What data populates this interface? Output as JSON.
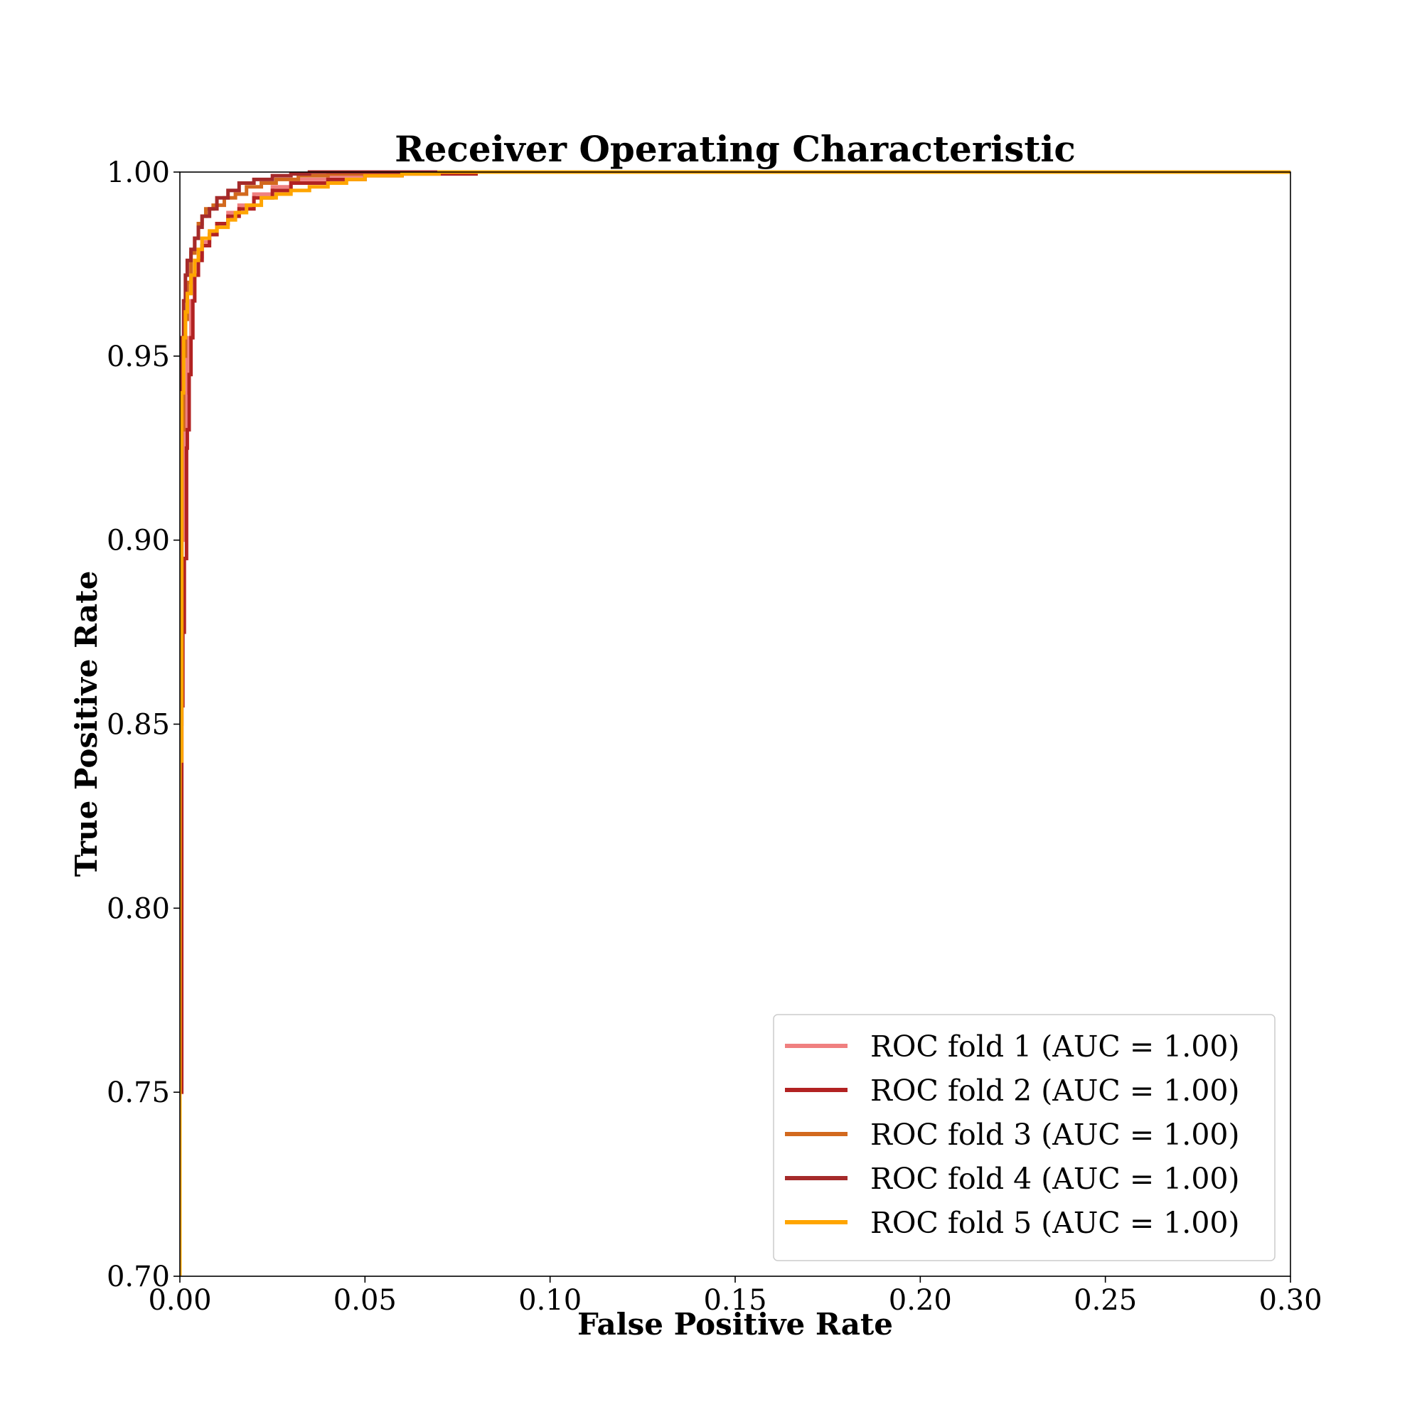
{
  "chart_data": {
    "type": "line",
    "title": "Receiver Operating Characteristic",
    "xlabel": "False Positive Rate",
    "ylabel": "True Positive Rate",
    "xlim": [
      0.0,
      0.3
    ],
    "ylim": [
      0.7,
      1.0
    ],
    "x_ticks": [
      "0.00",
      "0.05",
      "0.10",
      "0.15",
      "0.20",
      "0.25",
      "0.30"
    ],
    "y_ticks": [
      "0.70",
      "0.75",
      "0.80",
      "0.85",
      "0.90",
      "0.95",
      "1.00"
    ],
    "grid": false,
    "legend_position": "bottom-right",
    "series": [
      {
        "name": "ROC fold 1 (AUC = 1.00)",
        "color": "#f08080",
        "points": [
          [
            0,
            0.7
          ],
          [
            0.0005,
            0.8
          ],
          [
            0.001,
            0.9
          ],
          [
            0.0015,
            0.93
          ],
          [
            0.002,
            0.94
          ],
          [
            0.003,
            0.955
          ],
          [
            0.004,
            0.965
          ],
          [
            0.005,
            0.972
          ],
          [
            0.006,
            0.977
          ],
          [
            0.008,
            0.981
          ],
          [
            0.01,
            0.983
          ],
          [
            0.013,
            0.986
          ],
          [
            0.016,
            0.989
          ],
          [
            0.02,
            0.991
          ],
          [
            0.025,
            0.994
          ],
          [
            0.03,
            0.996
          ],
          [
            0.04,
            0.998
          ],
          [
            0.05,
            0.999
          ],
          [
            0.06,
            0.9995
          ],
          [
            0.08,
            1.0
          ],
          [
            0.3,
            1.0
          ]
        ]
      },
      {
        "name": "ROC fold 2 (AUC = 1.00)",
        "color": "#b22222",
        "points": [
          [
            0,
            0.7
          ],
          [
            0.0005,
            0.75
          ],
          [
            0.0008,
            0.855
          ],
          [
            0.0012,
            0.875
          ],
          [
            0.0018,
            0.895
          ],
          [
            0.002,
            0.925
          ],
          [
            0.0025,
            0.93
          ],
          [
            0.003,
            0.945
          ],
          [
            0.0035,
            0.955
          ],
          [
            0.004,
            0.965
          ],
          [
            0.005,
            0.972
          ],
          [
            0.006,
            0.976
          ],
          [
            0.008,
            0.98
          ],
          [
            0.01,
            0.983
          ],
          [
            0.013,
            0.986
          ],
          [
            0.016,
            0.988
          ],
          [
            0.02,
            0.99
          ],
          [
            0.025,
            0.993
          ],
          [
            0.03,
            0.995
          ],
          [
            0.04,
            0.997
          ],
          [
            0.05,
            0.998
          ],
          [
            0.06,
            0.999
          ],
          [
            0.08,
            0.9995
          ],
          [
            0.1,
            1.0
          ],
          [
            0.3,
            1.0
          ]
        ]
      },
      {
        "name": "ROC fold 3 (AUC = 1.00)",
        "color": "#d2691e",
        "points": [
          [
            0,
            0.75
          ],
          [
            0.0005,
            0.85
          ],
          [
            0.001,
            0.93
          ],
          [
            0.0015,
            0.95
          ],
          [
            0.002,
            0.96
          ],
          [
            0.003,
            0.97
          ],
          [
            0.004,
            0.978
          ],
          [
            0.005,
            0.982
          ],
          [
            0.006,
            0.986
          ],
          [
            0.007,
            0.988
          ],
          [
            0.009,
            0.99
          ],
          [
            0.012,
            0.991
          ],
          [
            0.015,
            0.993
          ],
          [
            0.018,
            0.994
          ],
          [
            0.022,
            0.996
          ],
          [
            0.026,
            0.997
          ],
          [
            0.032,
            0.998
          ],
          [
            0.04,
            0.999
          ],
          [
            0.05,
            0.9995
          ],
          [
            0.07,
            1.0
          ],
          [
            0.3,
            1.0
          ]
        ]
      },
      {
        "name": "ROC fold 4 (AUC = 1.00)",
        "color": "#a52a2a",
        "points": [
          [
            0,
            0.7
          ],
          [
            0.0005,
            0.88
          ],
          [
            0.001,
            0.955
          ],
          [
            0.0015,
            0.965
          ],
          [
            0.002,
            0.972
          ],
          [
            0.003,
            0.976
          ],
          [
            0.004,
            0.979
          ],
          [
            0.005,
            0.982
          ],
          [
            0.006,
            0.985
          ],
          [
            0.008,
            0.988
          ],
          [
            0.01,
            0.99
          ],
          [
            0.013,
            0.993
          ],
          [
            0.016,
            0.995
          ],
          [
            0.02,
            0.997
          ],
          [
            0.025,
            0.998
          ],
          [
            0.03,
            0.999
          ],
          [
            0.035,
            0.9995
          ],
          [
            0.045,
            1.0
          ],
          [
            0.3,
            1.0
          ]
        ]
      },
      {
        "name": "ROC fold 5 (AUC = 1.00)",
        "color": "#ffa500",
        "points": [
          [
            0,
            0.7
          ],
          [
            0.0005,
            0.84
          ],
          [
            0.001,
            0.94
          ],
          [
            0.0015,
            0.955
          ],
          [
            0.002,
            0.962
          ],
          [
            0.003,
            0.967
          ],
          [
            0.004,
            0.972
          ],
          [
            0.005,
            0.976
          ],
          [
            0.006,
            0.979
          ],
          [
            0.008,
            0.982
          ],
          [
            0.01,
            0.984
          ],
          [
            0.013,
            0.985
          ],
          [
            0.015,
            0.987
          ],
          [
            0.018,
            0.989
          ],
          [
            0.022,
            0.991
          ],
          [
            0.026,
            0.993
          ],
          [
            0.03,
            0.994
          ],
          [
            0.035,
            0.995
          ],
          [
            0.04,
            0.996
          ],
          [
            0.045,
            0.997
          ],
          [
            0.05,
            0.998
          ],
          [
            0.06,
            0.999
          ],
          [
            0.07,
            0.9995
          ],
          [
            0.09,
            1.0
          ],
          [
            0.3,
            1.0
          ]
        ]
      }
    ]
  }
}
